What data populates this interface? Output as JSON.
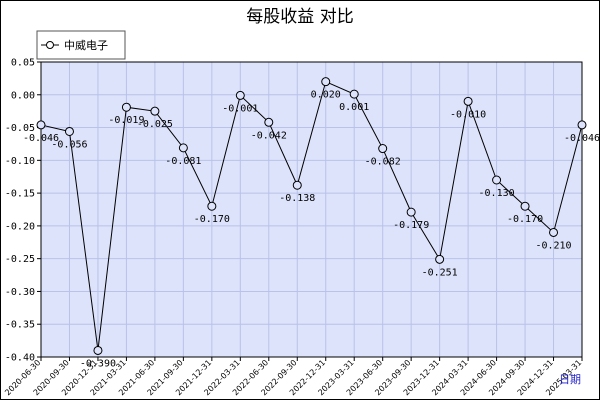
{
  "chart_data": {
    "type": "line",
    "title": "每股收益  对比",
    "xlabel": "",
    "ylabel": "",
    "x_unit_label": "日期",
    "ylim": [
      -0.4,
      0.05
    ],
    "yticks": [
      0.05,
      0.0,
      -0.05,
      -0.1,
      -0.15,
      -0.2,
      -0.25,
      -0.3,
      -0.35,
      -0.4
    ],
    "grid": true,
    "legend_position": "top-left",
    "colors": {
      "plot_background": "#dde3fa",
      "grid": "#b8c2ea",
      "line": "#000000",
      "marker_fill": "#dde3fa"
    },
    "categories": [
      "2020-06-30",
      "2020-09-30",
      "2020-12-31",
      "2021-03-31",
      "2021-06-30",
      "2021-09-30",
      "2021-12-31",
      "2022-03-31",
      "2022-06-30",
      "2022-09-30",
      "2022-12-31",
      "2023-03-31",
      "2023-06-30",
      "2023-09-30",
      "2023-12-31",
      "2024-03-31",
      "2024-06-30",
      "2024-09-30",
      "2024-12-31",
      "2025-03-31"
    ],
    "series": [
      {
        "name": "中威电子",
        "values": [
          -0.046,
          -0.056,
          -0.39,
          -0.019,
          -0.025,
          -0.081,
          -0.17,
          -0.001,
          -0.042,
          -0.138,
          0.02,
          0.001,
          -0.082,
          -0.179,
          -0.251,
          -0.01,
          -0.13,
          -0.17,
          -0.21,
          -0.046
        ],
        "labels": [
          "-0.046",
          "-0.056",
          "-0.390",
          "-0.019",
          "-0.025",
          "-0.081",
          "-0.170",
          "-0.001",
          "-0.042",
          "-0.138",
          "0.020",
          "0.001",
          "-0.082",
          "-0.179",
          "-0.251",
          "-0.010",
          "-0.130",
          "-0.170",
          "-0.210",
          "-0.046"
        ]
      }
    ]
  }
}
